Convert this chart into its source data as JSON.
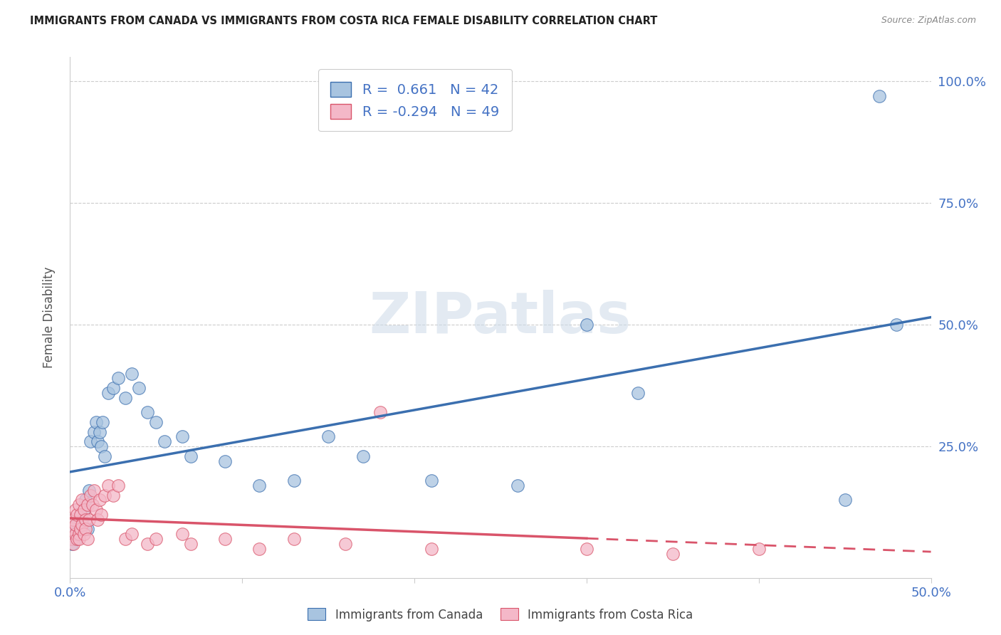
{
  "title": "IMMIGRANTS FROM CANADA VS IMMIGRANTS FROM COSTA RICA FEMALE DISABILITY CORRELATION CHART",
  "source": "Source: ZipAtlas.com",
  "ylabel": "Female Disability",
  "xlim": [
    0.0,
    0.5
  ],
  "ylim": [
    -0.02,
    1.05
  ],
  "canada_R": 0.661,
  "canada_N": 42,
  "costarica_R": -0.294,
  "costarica_N": 49,
  "canada_color": "#a8c4e0",
  "canada_line_color": "#3b6faf",
  "costarica_color": "#f4b8c8",
  "costarica_line_color": "#d9546a",
  "watermark": "ZIPatlas",
  "canada_x": [
    0.001,
    0.002,
    0.003,
    0.004,
    0.005,
    0.006,
    0.007,
    0.008,
    0.009,
    0.01,
    0.011,
    0.012,
    0.014,
    0.015,
    0.016,
    0.017,
    0.018,
    0.019,
    0.02,
    0.022,
    0.025,
    0.028,
    0.032,
    0.036,
    0.04,
    0.045,
    0.05,
    0.055,
    0.065,
    0.07,
    0.09,
    0.11,
    0.13,
    0.15,
    0.17,
    0.21,
    0.26,
    0.3,
    0.33,
    0.47,
    0.48,
    0.45
  ],
  "canada_y": [
    0.05,
    0.07,
    0.06,
    0.09,
    0.08,
    0.11,
    0.1,
    0.12,
    0.14,
    0.08,
    0.16,
    0.26,
    0.28,
    0.3,
    0.26,
    0.28,
    0.25,
    0.3,
    0.23,
    0.36,
    0.37,
    0.39,
    0.35,
    0.4,
    0.37,
    0.32,
    0.3,
    0.26,
    0.27,
    0.23,
    0.22,
    0.17,
    0.18,
    0.27,
    0.23,
    0.18,
    0.17,
    0.5,
    0.36,
    0.97,
    0.5,
    0.14
  ],
  "costarica_x": [
    0.001,
    0.001,
    0.002,
    0.002,
    0.003,
    0.003,
    0.003,
    0.004,
    0.004,
    0.005,
    0.005,
    0.005,
    0.006,
    0.006,
    0.007,
    0.007,
    0.008,
    0.008,
    0.009,
    0.009,
    0.01,
    0.01,
    0.011,
    0.012,
    0.013,
    0.014,
    0.015,
    0.016,
    0.017,
    0.018,
    0.02,
    0.022,
    0.025,
    0.028,
    0.032,
    0.036,
    0.045,
    0.05,
    0.065,
    0.07,
    0.09,
    0.11,
    0.13,
    0.16,
    0.18,
    0.21,
    0.3,
    0.35,
    0.4
  ],
  "costarica_y": [
    0.06,
    0.08,
    0.05,
    0.1,
    0.07,
    0.09,
    0.12,
    0.06,
    0.11,
    0.07,
    0.06,
    0.13,
    0.08,
    0.11,
    0.09,
    0.14,
    0.07,
    0.12,
    0.1,
    0.08,
    0.13,
    0.06,
    0.1,
    0.15,
    0.13,
    0.16,
    0.12,
    0.1,
    0.14,
    0.11,
    0.15,
    0.17,
    0.15,
    0.17,
    0.06,
    0.07,
    0.05,
    0.06,
    0.07,
    0.05,
    0.06,
    0.04,
    0.06,
    0.05,
    0.32,
    0.04,
    0.04,
    0.03,
    0.04
  ]
}
